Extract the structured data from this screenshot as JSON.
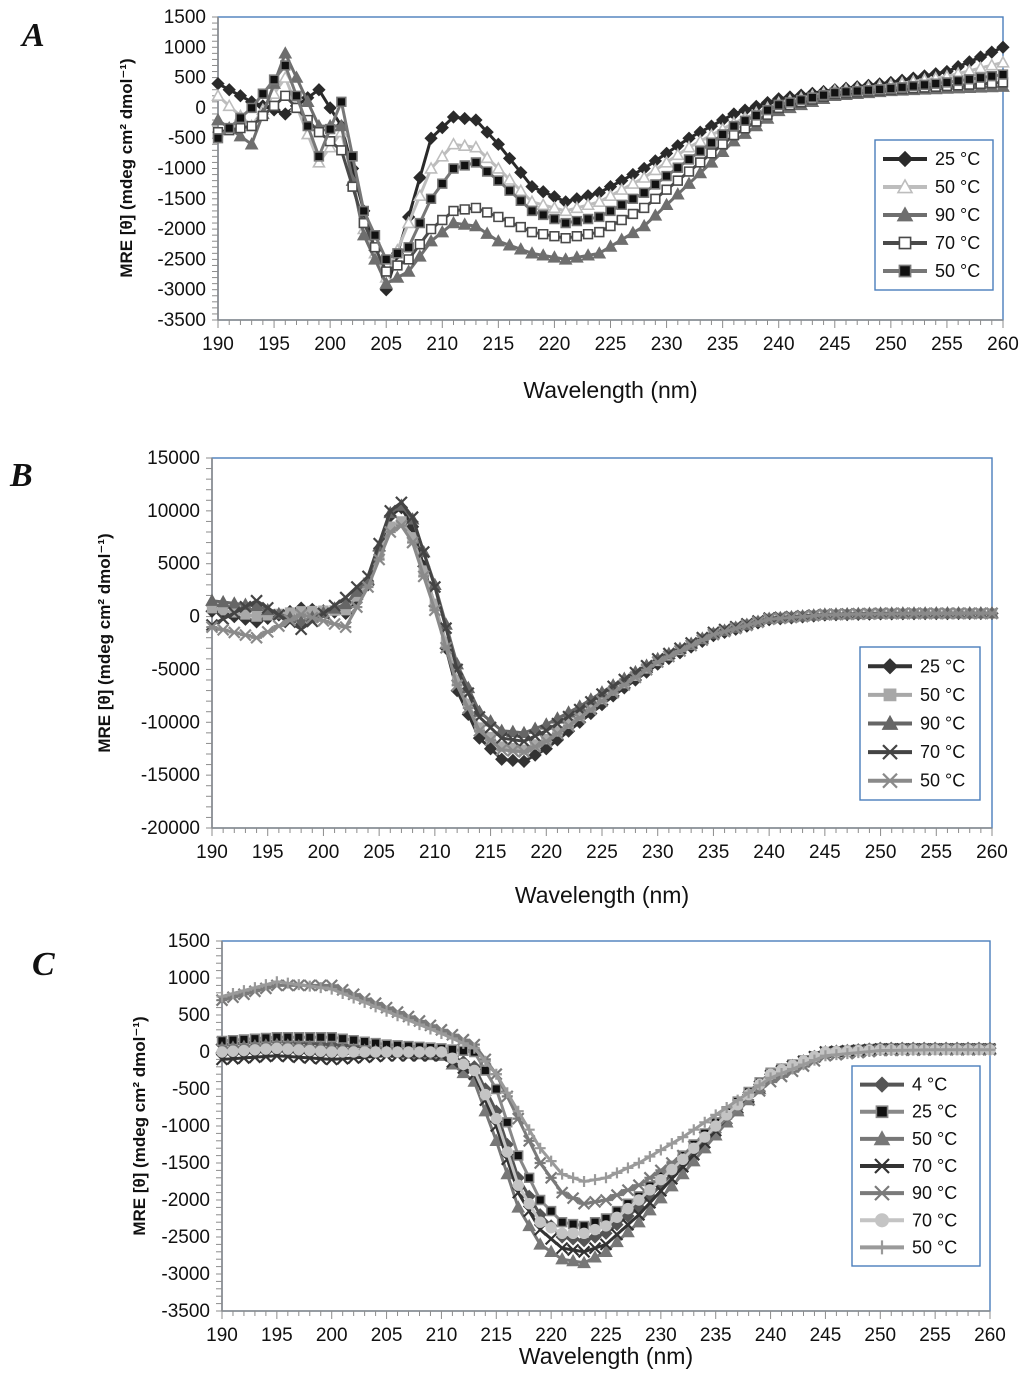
{
  "chart_data": [
    {
      "panel": "A",
      "type": "line",
      "xlabel": "Wavelength (nm)",
      "ylabel": "MRE [θ] (mdeg cm² dmol⁻¹)",
      "xlim": [
        190,
        260
      ],
      "ylim": [
        -3500,
        1500
      ],
      "xticks": [
        190,
        195,
        200,
        205,
        210,
        215,
        220,
        225,
        230,
        235,
        240,
        245,
        250,
        255,
        260
      ],
      "yticks": [
        -3500,
        -3000,
        -2500,
        -2000,
        -1500,
        -1000,
        -500,
        0,
        500,
        1000,
        1500
      ],
      "legend_position": "right",
      "series": [
        {
          "name": "25 °C",
          "color": "#2a2a2a",
          "marker": "diamond",
          "fill": true,
          "x": [
            190,
            193,
            196,
            199,
            201,
            203,
            205,
            207,
            209,
            211,
            213,
            215,
            218,
            221,
            224,
            228,
            232,
            236,
            240,
            245,
            250,
            255,
            260
          ],
          "values": [
            400,
            100,
            -100,
            300,
            -300,
            -1700,
            -3000,
            -1800,
            -500,
            -150,
            -200,
            -600,
            -1300,
            -1550,
            -1400,
            -1000,
            -500,
            -100,
            150,
            300,
            420,
            600,
            1000
          ]
        },
        {
          "name": "50 °C",
          "color": "#bdbdbd",
          "marker": "triangle",
          "fill": false,
          "x": [
            190,
            193,
            196,
            199,
            201,
            203,
            205,
            207,
            209,
            211,
            213,
            215,
            218,
            221,
            224,
            228,
            232,
            236,
            240,
            245,
            250,
            255,
            260
          ],
          "values": [
            200,
            -300,
            500,
            -900,
            -400,
            -2000,
            -2800,
            -1900,
            -1000,
            -600,
            -650,
            -1000,
            -1550,
            -1700,
            -1550,
            -1150,
            -650,
            -250,
            80,
            280,
            380,
            520,
            750
          ]
        },
        {
          "name": "90 °C",
          "color": "#6e6e6e",
          "marker": "triangle",
          "fill": true,
          "x": [
            190,
            193,
            196,
            199,
            201,
            203,
            205,
            207,
            209,
            211,
            213,
            215,
            218,
            221,
            224,
            228,
            232,
            236,
            240,
            245,
            250,
            255,
            260
          ],
          "values": [
            -200,
            -600,
            900,
            -300,
            -300,
            -2100,
            -2900,
            -2700,
            -2200,
            -1900,
            -1950,
            -2200,
            -2400,
            -2500,
            -2400,
            -1950,
            -1250,
            -550,
            -50,
            200,
            280,
            320,
            350
          ]
        },
        {
          "name": "70 °C",
          "color": "#4a4a4a",
          "marker": "square",
          "fill": false,
          "x": [
            190,
            193,
            196,
            199,
            201,
            203,
            205,
            207,
            209,
            211,
            213,
            215,
            218,
            221,
            224,
            228,
            232,
            236,
            240,
            245,
            250,
            255,
            260
          ],
          "values": [
            -400,
            -300,
            200,
            -400,
            -700,
            -1900,
            -2700,
            -2500,
            -2000,
            -1700,
            -1650,
            -1800,
            -2050,
            -2150,
            -2050,
            -1650,
            -1050,
            -450,
            0,
            230,
            300,
            360,
            420
          ]
        },
        {
          "name": "50 °C",
          "color": "#777777",
          "marker": "square",
          "fill": true,
          "fill_color": "#111111",
          "x": [
            190,
            193,
            196,
            199,
            201,
            203,
            205,
            207,
            209,
            211,
            213,
            215,
            218,
            221,
            224,
            228,
            232,
            236,
            240,
            245,
            250,
            255,
            260
          ],
          "values": [
            -500,
            0,
            700,
            -800,
            100,
            -1700,
            -2500,
            -2300,
            -1500,
            -1000,
            -900,
            -1200,
            -1700,
            -1900,
            -1800,
            -1400,
            -850,
            -300,
            50,
            250,
            320,
            420,
            550
          ]
        }
      ]
    },
    {
      "panel": "B",
      "type": "line",
      "xlabel": "Wavelength (nm)",
      "ylabel": "MRE [θ] (mdeg cm² dmol⁻¹)",
      "xlim": [
        190,
        260
      ],
      "ylim": [
        -20000,
        15000
      ],
      "xticks": [
        190,
        195,
        200,
        205,
        210,
        215,
        220,
        225,
        230,
        235,
        240,
        245,
        250,
        255,
        260
      ],
      "yticks": [
        -20000,
        -15000,
        -10000,
        -5000,
        0,
        5000,
        10000,
        15000
      ],
      "legend_position": "right",
      "series": [
        {
          "name": "25 °C",
          "color": "#333333",
          "marker": "diamond",
          "fill": true,
          "x": [
            190,
            194,
            198,
            202,
            204,
            206,
            207,
            208,
            210,
            212,
            214,
            216,
            218,
            220,
            223,
            226,
            230,
            235,
            240,
            245,
            250,
            255,
            260
          ],
          "values": [
            500,
            -500,
            800,
            300,
            3000,
            9500,
            10300,
            8500,
            1000,
            -7000,
            -11500,
            -13500,
            -13700,
            -12500,
            -10000,
            -7500,
            -4500,
            -1800,
            -300,
            150,
            250,
            280,
            300
          ]
        },
        {
          "name": "50 °C",
          "color": "#a8a8a8",
          "marker": "square",
          "fill": true,
          "x": [
            190,
            194,
            198,
            202,
            204,
            206,
            207,
            208,
            210,
            212,
            214,
            216,
            218,
            220,
            223,
            226,
            230,
            235,
            240,
            245,
            250,
            255,
            260
          ],
          "values": [
            800,
            0,
            500,
            600,
            3200,
            8500,
            9000,
            7500,
            1200,
            -6000,
            -10500,
            -12300,
            -12600,
            -11600,
            -9400,
            -7000,
            -4200,
            -1600,
            -200,
            180,
            280,
            300,
            300
          ]
        },
        {
          "name": "90 °C",
          "color": "#666666",
          "marker": "triangle",
          "fill": true,
          "x": [
            190,
            194,
            198,
            202,
            204,
            206,
            207,
            208,
            210,
            212,
            214,
            216,
            218,
            220,
            223,
            226,
            230,
            235,
            240,
            245,
            250,
            255,
            260
          ],
          "values": [
            1500,
            1000,
            -500,
            1200,
            3500,
            9800,
            10500,
            9200,
            3000,
            -4500,
            -9000,
            -10800,
            -11000,
            -10200,
            -8500,
            -6500,
            -4000,
            -1600,
            -200,
            200,
            300,
            320,
            330
          ]
        },
        {
          "name": "70 °C",
          "color": "#444444",
          "marker": "x",
          "fill": false,
          "x": [
            190,
            194,
            198,
            202,
            204,
            206,
            207,
            208,
            210,
            212,
            214,
            216,
            218,
            220,
            223,
            226,
            230,
            235,
            240,
            245,
            250,
            255,
            260
          ],
          "values": [
            -800,
            1500,
            -1200,
            1800,
            3800,
            10000,
            10800,
            9400,
            2800,
            -5000,
            -9500,
            -11500,
            -11800,
            -10800,
            -8800,
            -6600,
            -4000,
            -1500,
            -150,
            200,
            300,
            300,
            300
          ]
        },
        {
          "name": "50 °C",
          "color": "#8a8a8a",
          "marker": "asterisk",
          "fill": false,
          "x": [
            190,
            194,
            198,
            202,
            204,
            206,
            207,
            208,
            210,
            212,
            214,
            216,
            218,
            220,
            223,
            226,
            230,
            235,
            240,
            245,
            250,
            255,
            260
          ],
          "values": [
            -1000,
            -2000,
            200,
            -1000,
            2800,
            8000,
            8600,
            7000,
            600,
            -6500,
            -10800,
            -12600,
            -12800,
            -11800,
            -9600,
            -7200,
            -4300,
            -1700,
            -250,
            170,
            270,
            290,
            300
          ]
        }
      ]
    },
    {
      "panel": "C",
      "type": "line",
      "xlabel": "Wavelength (nm)",
      "ylabel": "MRE [θ] (mdeg cm² dmol⁻¹)",
      "xlim": [
        190,
        260
      ],
      "ylim": [
        -3500,
        1500
      ],
      "xticks": [
        190,
        195,
        200,
        205,
        210,
        215,
        220,
        225,
        230,
        235,
        240,
        245,
        250,
        255,
        260
      ],
      "yticks": [
        -3500,
        -3000,
        -2500,
        -2000,
        -1500,
        -1000,
        -500,
        0,
        500,
        1000,
        1500
      ],
      "legend_position": "right",
      "series": [
        {
          "name": "4 °C",
          "color": "#555555",
          "marker": "diamond",
          "fill": true,
          "x": [
            190,
            195,
            200,
            205,
            210,
            213,
            215,
            217,
            219,
            221,
            223,
            225,
            228,
            232,
            236,
            240,
            245,
            250,
            255,
            260
          ],
          "values": [
            100,
            150,
            100,
            50,
            0,
            -200,
            -800,
            -1700,
            -2200,
            -2500,
            -2550,
            -2450,
            -2100,
            -1500,
            -850,
            -300,
            0,
            50,
            50,
            50
          ]
        },
        {
          "name": "25 °C",
          "color": "#888888",
          "marker": "square",
          "fill": true,
          "fill_color": "#111111",
          "x": [
            190,
            195,
            200,
            205,
            210,
            213,
            215,
            217,
            219,
            221,
            223,
            225,
            228,
            232,
            236,
            240,
            245,
            250,
            255,
            260
          ],
          "values": [
            150,
            200,
            200,
            100,
            50,
            0,
            -500,
            -1400,
            -2000,
            -2300,
            -2350,
            -2250,
            -1950,
            -1400,
            -800,
            -280,
            0,
            50,
            50,
            50
          ]
        },
        {
          "name": "50 °C",
          "color": "#777777",
          "marker": "triangle",
          "fill": true,
          "x": [
            190,
            195,
            200,
            205,
            210,
            213,
            215,
            217,
            219,
            221,
            223,
            225,
            228,
            232,
            236,
            240,
            245,
            250,
            255,
            260
          ],
          "values": [
            50,
            100,
            50,
            0,
            -50,
            -400,
            -1200,
            -2100,
            -2600,
            -2800,
            -2850,
            -2700,
            -2300,
            -1650,
            -950,
            -350,
            0,
            40,
            40,
            40
          ]
        },
        {
          "name": "70 °C",
          "color": "#333333",
          "marker": "x",
          "fill": false,
          "x": [
            190,
            195,
            200,
            205,
            210,
            213,
            215,
            217,
            219,
            221,
            223,
            225,
            228,
            232,
            236,
            240,
            245,
            250,
            255,
            260
          ],
          "values": [
            -100,
            -50,
            -100,
            -50,
            -50,
            -300,
            -1000,
            -1900,
            -2400,
            -2650,
            -2700,
            -2600,
            -2200,
            -1550,
            -900,
            -320,
            0,
            40,
            40,
            40
          ]
        },
        {
          "name": "90 °C",
          "color": "#7a7a7a",
          "marker": "asterisk",
          "fill": false,
          "x": [
            190,
            195,
            200,
            205,
            210,
            213,
            215,
            217,
            219,
            221,
            223,
            225,
            228,
            232,
            236,
            240,
            245,
            250,
            255,
            260
          ],
          "values": [
            700,
            900,
            900,
            600,
            300,
            100,
            -300,
            -900,
            -1500,
            -1900,
            -2050,
            -2000,
            -1800,
            -1400,
            -900,
            -400,
            -50,
            20,
            30,
            30
          ]
        },
        {
          "name": "70 °C",
          "color": "#c4c4c4",
          "marker": "circle",
          "fill": true,
          "x": [
            190,
            195,
            200,
            205,
            210,
            213,
            215,
            217,
            219,
            221,
            223,
            225,
            228,
            232,
            236,
            240,
            245,
            250,
            255,
            260
          ],
          "values": [
            0,
            50,
            0,
            0,
            0,
            -250,
            -900,
            -1800,
            -2300,
            -2450,
            -2450,
            -2350,
            -2000,
            -1450,
            -850,
            -300,
            0,
            30,
            30,
            30
          ]
        },
        {
          "name": "50 °C",
          "color": "#9a9a9a",
          "marker": "plus",
          "fill": false,
          "x": [
            190,
            195,
            200,
            205,
            210,
            213,
            215,
            217,
            219,
            221,
            223,
            225,
            228,
            232,
            236,
            240,
            245,
            250,
            255,
            260
          ],
          "values": [
            750,
            950,
            850,
            550,
            250,
            50,
            -300,
            -800,
            -1300,
            -1650,
            -1750,
            -1700,
            -1500,
            -1150,
            -750,
            -350,
            -50,
            20,
            30,
            30
          ]
        }
      ]
    }
  ]
}
